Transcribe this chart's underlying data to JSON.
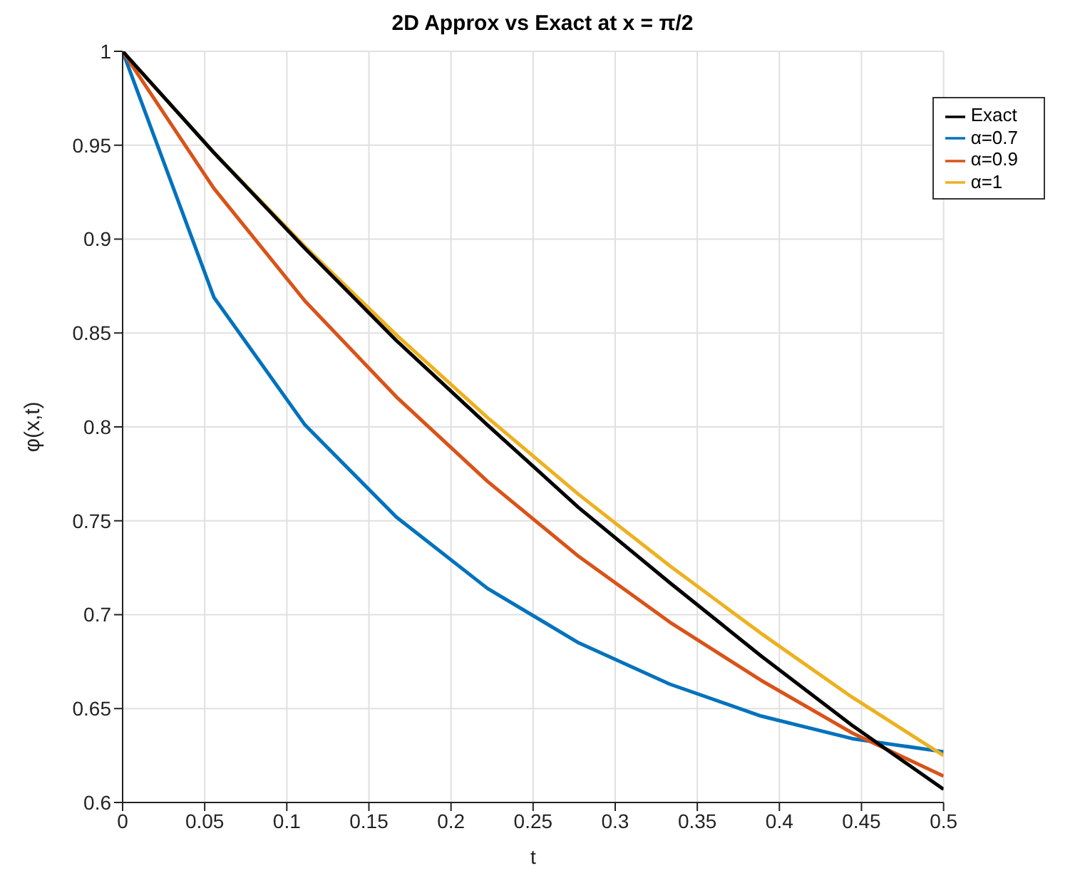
{
  "chart_data": {
    "type": "line",
    "title": "2D Approx vs Exact at x = π/2",
    "xlabel": "t",
    "ylabel": "φ(x,t)",
    "x": [
      0,
      0.0556,
      0.1111,
      0.1667,
      0.2222,
      0.2778,
      0.3333,
      0.3889,
      0.4444,
      0.5
    ],
    "series": [
      {
        "name": "α=0.7",
        "color": "#0072bd",
        "values": [
          1,
          0.869,
          0.801,
          0.752,
          0.714,
          0.685,
          0.663,
          0.646,
          0.634,
          0.627
        ]
      },
      {
        "name": "α=0.9",
        "color": "#d95319",
        "values": [
          1,
          0.927,
          0.867,
          0.816,
          0.771,
          0.731,
          0.696,
          0.665,
          0.637,
          0.614
        ]
      },
      {
        "name": "α=1",
        "color": "#edb120",
        "values": [
          1,
          0.946,
          0.896,
          0.849,
          0.805,
          0.764,
          0.726,
          0.69,
          0.656,
          0.625
        ]
      },
      {
        "name": "Exact",
        "color": "#000000",
        "values": [
          1,
          0.946,
          0.895,
          0.846,
          0.801,
          0.757,
          0.717,
          0.678,
          0.641,
          0.607
        ]
      }
    ],
    "xlim": [
      0,
      0.5
    ],
    "xticks": [
      0,
      0.05,
      0.1,
      0.15,
      0.2,
      0.25,
      0.3,
      0.35,
      0.4,
      0.45,
      0.5
    ],
    "ylim": [
      0.6,
      1
    ],
    "yticks": [
      0.6,
      0.65,
      0.7,
      0.75,
      0.8,
      0.85,
      0.9,
      0.95,
      1
    ],
    "grid": true,
    "legend": "top right",
    "marker": "none",
    "line_style": "solid"
  }
}
